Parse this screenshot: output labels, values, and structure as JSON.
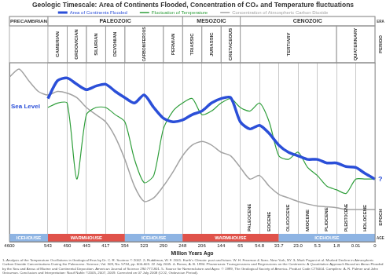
{
  "chart_data": {
    "type": "line",
    "title": "Geologic Timescale: Area of Continents Flooded, Concentration of CO₂ and Temperature fluctuations",
    "x_label": "Million Years Ago",
    "categories": [
      "4600",
      null,
      null,
      null,
      "543",
      null,
      "490",
      null,
      "443",
      null,
      "417",
      null,
      "354",
      null,
      "323",
      null,
      "290",
      null,
      "248",
      null,
      "206",
      null,
      "144",
      null,
      "65",
      null,
      "54.8",
      null,
      "33.7",
      null,
      "23.0",
      null,
      "5.3",
      null,
      "1.8",
      null,
      "0.01",
      null,
      "0"
    ],
    "series": [
      {
        "name": "Area of Continents Flooded",
        "color": "#2b4fd8",
        "values": [
          null,
          null,
          null,
          null,
          80,
          90,
          91.5,
          88,
          85,
          87,
          88,
          84,
          80.5,
          77.5,
          82,
          75,
          69,
          67,
          68,
          71,
          73,
          77.5,
          80,
          80.5,
          67,
          63,
          65,
          60.5,
          54,
          50,
          48,
          46,
          46,
          44,
          44,
          42,
          41.5,
          38,
          35
        ]
      },
      {
        "name": "Fluctuation of Temperature",
        "color": "#2e9e3a",
        "values": [
          null,
          null,
          null,
          null,
          75,
          77.5,
          77.5,
          35,
          71,
          75,
          75,
          71,
          67,
          46,
          33,
          37,
          63,
          73,
          77.5,
          80,
          71,
          73,
          77.5,
          80,
          75,
          73,
          77.5,
          67,
          48,
          46,
          50,
          41.5,
          37,
          31,
          29,
          27,
          35,
          35,
          35
        ]
      },
      {
        "name": "Concentration of Atmospheric Carbon Dioxide",
        "color": "#a3a3a3",
        "values": [
          92,
          96.5,
          90,
          84,
          82,
          84,
          83,
          80.5,
          75,
          71,
          67,
          58.5,
          46,
          31,
          22.5,
          24.5,
          31,
          39,
          48,
          54,
          56,
          54,
          50,
          48,
          41.5,
          35,
          37,
          31,
          26.5,
          24.5,
          22.5,
          21,
          20,
          19.5,
          19,
          18,
          18,
          18,
          18
        ]
      }
    ],
    "ylim": [
      0,
      100
    ],
    "tick_labels": "x",
    "grid": true,
    "legend": "top",
    "annotations": [
      "Sea Level",
      "?"
    ],
    "row_labels": [
      "ERA",
      "PERIOD",
      "EPOCH",
      "AGE"
    ],
    "eras": [
      {
        "label": "PRECAMBRIAN",
        "from": "4600",
        "to": "543"
      },
      {
        "label": "PALEOZOIC",
        "from": "543",
        "to": "248"
      },
      {
        "label": "MESOZOIC",
        "from": "248",
        "to": "65"
      },
      {
        "label": "CENOZOIC",
        "from": "65",
        "to": "0"
      }
    ],
    "periods": [
      {
        "label": "CAMBRIAN",
        "from": "543",
        "to": "490"
      },
      {
        "label": "ORDOVICIAN",
        "from": "490",
        "to": "443"
      },
      {
        "label": "SILURIAN",
        "from": "443",
        "to": "417"
      },
      {
        "label": "DEVONIAN",
        "from": "417",
        "to": "354"
      },
      {
        "label": "CARBONIFEROUS",
        "from": "354",
        "to": "290"
      },
      {
        "label": "PERMIAN",
        "from": "290",
        "to": "248"
      },
      {
        "label": "TRIASSIC",
        "from": "248",
        "to": "206"
      },
      {
        "label": "JURASSIC",
        "from": "206",
        "to": "144"
      },
      {
        "label": "CRETACEOUS",
        "from": "144",
        "to": "65"
      },
      {
        "label": "TERTIARY",
        "from": "65",
        "to": "1.8"
      },
      {
        "label": "QUATERNARY",
        "from": "1.8",
        "to": "0"
      }
    ],
    "epochs": [
      {
        "label": "PALEOCENE",
        "from": "65",
        "to": "54.8"
      },
      {
        "label": "EOCENE",
        "from": "54.8",
        "to": "33.7"
      },
      {
        "label": "OLIGOCENE",
        "from": "33.7",
        "to": "23.0"
      },
      {
        "label": "MIOCENE",
        "from": "23.0",
        "to": "5.3"
      },
      {
        "label": "PLIOCENE",
        "from": "5.3",
        "to": "1.8"
      },
      {
        "label": "PLEISTOCENE",
        "from": "1.8",
        "to": "0.01"
      },
      {
        "label": "HOLOCENE",
        "from": "0.01",
        "to": "0"
      }
    ],
    "ages": [
      {
        "label": "ICEHOUSE",
        "from": "4600",
        "to": "543",
        "color": "#8eb4e3"
      },
      {
        "label": "WARMHOUSE",
        "from": "543",
        "to": "354",
        "color": "#e0524a"
      },
      {
        "label": "ICEHOUSE",
        "from": "354",
        "to": "248",
        "color": "#8eb4e3"
      },
      {
        "label": "WARMHOUSE",
        "from": "248",
        "to": "33.7",
        "color": "#e0524a"
      },
      {
        "label": "ICEHOUSE",
        "from": "33.7",
        "to": "0",
        "color": "#8eb4e3"
      }
    ],
    "footnote": "1- Analysis of the Temperature Oscillations in Geological Eras by Dr. C. R. Scotese © 2002. 2- Ruddiman, W. F. 2001. Earth's Climate: past and future. W. H. Freeman & Sons. New York, NY. 3- Mark Pagani et al. Marked Decline in Atmospheric Carbon Dioxide Concentrations During the Paleocene. Science; Vol. 309, No. 5734, pp. 600-603. 22 July 2005. 4- Ronov, A. B. 1994. Phanerozoic Transgressions and Regressions on the Continents: A Quantitative Approach Based on Areas Flooded by the Sea and Areas of Marine and Continental Deposition. American Journal of Science 294:777-801. 5- Source for Nomenclature and Ages: © 1999, The Geological Society of America. Product Code CTS004. Compilers: A. R. Palmer and John Geissman. Conclusion and Interpretation: Nasif Nahle ©2005, 2007, 2009. Corrected on 07 July 2008 (CO2, Ordovician Period)."
  }
}
